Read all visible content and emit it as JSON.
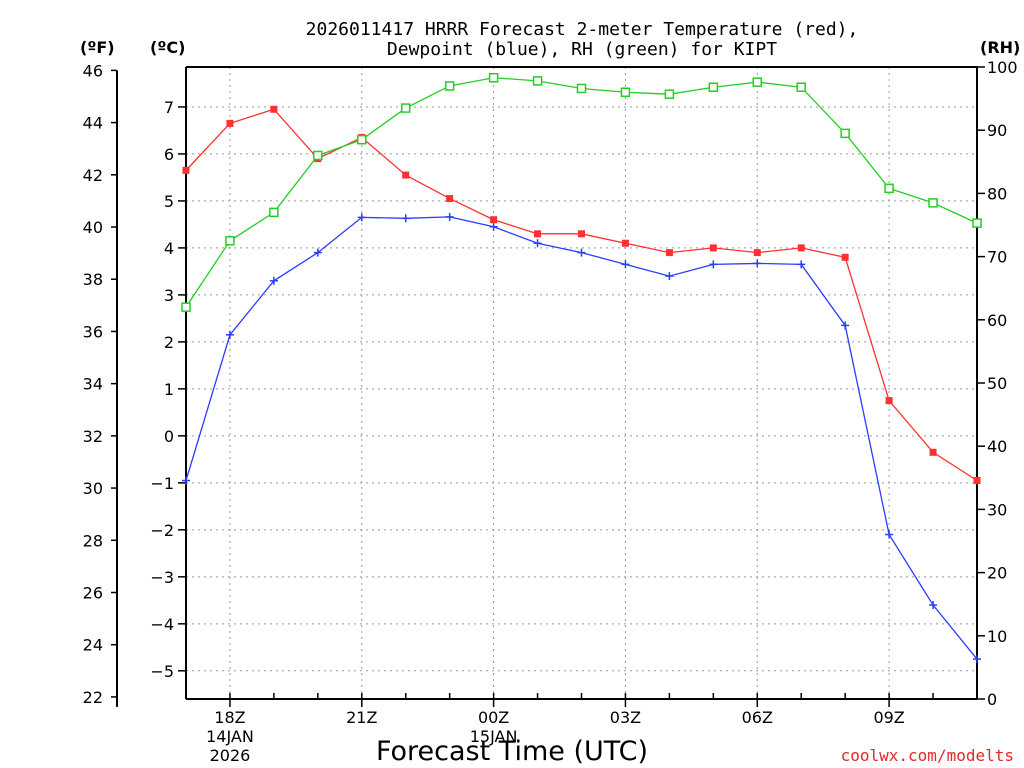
{
  "chart_data": {
    "type": "line",
    "title_lines": [
      "2026011417 HRRR Forecast 2-meter Temperature (red),",
      "Dewpoint (blue), RH (green) for KIPT"
    ],
    "xlabel": "Forecast Time (UTC)",
    "left_unit_f": "(ºF)",
    "left_unit_c": "(ºC)",
    "right_unit": "(RH)",
    "watermark": "coolwx.com/modelts",
    "x_hours": [
      17,
      18,
      19,
      20,
      21,
      22,
      23,
      24,
      25,
      26,
      27,
      28,
      29,
      30,
      31,
      32,
      33,
      34,
      35
    ],
    "x_ticks": [
      {
        "hour": 18,
        "lines": [
          "18Z",
          "14JAN",
          "2026"
        ]
      },
      {
        "hour": 21,
        "lines": [
          "21Z"
        ]
      },
      {
        "hour": 24,
        "lines": [
          "00Z",
          "15JAN"
        ]
      },
      {
        "hour": 27,
        "lines": [
          "03Z"
        ]
      },
      {
        "hour": 30,
        "lines": [
          "06Z"
        ]
      },
      {
        "hour": 33,
        "lines": [
          "09Z"
        ]
      }
    ],
    "celsius_range": [
      -5.6,
      7.85
    ],
    "celsius_ticks": [
      "-5",
      "-4",
      "-3",
      "-2",
      "-1",
      "0",
      "1",
      "2",
      "3",
      "4",
      "5",
      "6",
      "7"
    ],
    "fahrenheit_ticks": [
      "22",
      "24",
      "26",
      "28",
      "30",
      "32",
      "34",
      "36",
      "38",
      "40",
      "42",
      "44",
      "46"
    ],
    "rh_range": [
      0,
      100
    ],
    "rh_ticks": [
      "0",
      "10",
      "20",
      "30",
      "40",
      "50",
      "60",
      "70",
      "80",
      "90",
      "100"
    ],
    "series": [
      {
        "name": "Temperature",
        "color": "#ff3030",
        "marker": "filled-square",
        "values": [
          5.65,
          6.65,
          6.95,
          5.9,
          6.35,
          5.55,
          5.05,
          4.6,
          4.3,
          4.3,
          4.1,
          3.9,
          4.0,
          3.9,
          4.0,
          3.8,
          0.75,
          -0.35,
          -0.95
        ]
      },
      {
        "name": "Dewpoint",
        "color": "#2a3cff",
        "marker": "plus",
        "values": [
          -0.95,
          2.15,
          3.3,
          3.9,
          4.65,
          4.63,
          4.66,
          4.45,
          4.1,
          3.9,
          3.65,
          3.4,
          3.65,
          3.67,
          3.65,
          2.35,
          -2.1,
          -3.6,
          -4.75
        ]
      },
      {
        "name": "RH",
        "color": "#20d020",
        "marker": "open-square",
        "values": [
          62,
          72.5,
          77,
          86,
          88.5,
          93.5,
          97,
          98.3,
          97.8,
          96.6,
          96,
          95.7,
          96.8,
          97.6,
          96.8,
          89.5,
          80.8,
          78.5,
          75.3
        ]
      }
    ]
  }
}
